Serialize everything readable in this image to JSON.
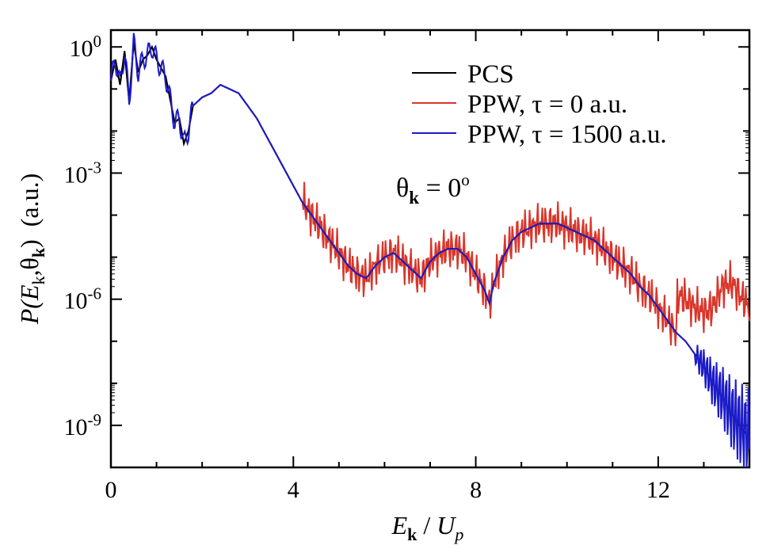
{
  "chart_data": {
    "type": "line",
    "title": "",
    "xlabel": "E_k / U_p",
    "ylabel": "P(E_k, θ_k) (a.u.)",
    "xlabel_parts": {
      "main": "E",
      "sub": "k",
      "sep": " / ",
      "u": "U",
      "usub": "p"
    },
    "ylabel_parts": {
      "p": "P(",
      "e": "E",
      "esub": "k",
      "comma": ",θ",
      "tsub": "k",
      "close": ")",
      "units": "(a.u.)"
    },
    "xlim": [
      0,
      14
    ],
    "ylim_log10": [
      -10,
      0.4
    ],
    "y_scale": "log",
    "x_ticks": [
      {
        "value": 0,
        "label": "0"
      },
      {
        "value": 4,
        "label": "4"
      },
      {
        "value": 8,
        "label": "8"
      },
      {
        "value": 12,
        "label": "12"
      }
    ],
    "y_ticks": [
      {
        "exp": 0,
        "base": "10",
        "sup": "0"
      },
      {
        "exp": -3,
        "base": "10",
        "sup": "-3"
      },
      {
        "exp": -6,
        "base": "10",
        "sup": "-6"
      },
      {
        "exp": -9,
        "base": "10",
        "sup": "-9"
      }
    ],
    "annotation": {
      "theta": "θ",
      "sub": "k",
      "eq": " = 0",
      "sup": "o"
    },
    "legend_position": "top-right",
    "series": [
      {
        "name": "PCS",
        "color": "#000000",
        "x": [
          0,
          0.1,
          0.2,
          0.3,
          0.4,
          0.5,
          0.6,
          0.7,
          0.8,
          0.9,
          1.0,
          1.2,
          1.4,
          1.5,
          1.6,
          1.7,
          1.8,
          2.0,
          2.2,
          2.4,
          2.6,
          2.8,
          3.0,
          3.2,
          3.4,
          3.6,
          3.8,
          4.0,
          4.2,
          4.4,
          4.6,
          4.8,
          5.0,
          5.2,
          5.4,
          5.6,
          5.8,
          6.0,
          6.2,
          6.4,
          6.6,
          6.8,
          7.0,
          7.2,
          7.4,
          7.6,
          7.8,
          8.0,
          8.2,
          8.3,
          8.4,
          8.6,
          8.8,
          9.0,
          9.2,
          9.4,
          9.6,
          9.8,
          10.0,
          10.2,
          10.4,
          10.6,
          10.8,
          11.0,
          11.2,
          11.4,
          11.6,
          11.8,
          12.0,
          12.2,
          12.4,
          12.6,
          12.8,
          13.0,
          13.2,
          13.4,
          13.6,
          13.8,
          14.0
        ],
        "log10_y": [
          -0.8,
          -0.3,
          -0.9,
          -0.1,
          -1.3,
          0.1,
          -0.6,
          -0.3,
          -0.2,
          0.0,
          -0.3,
          -0.7,
          -1.8,
          -1.7,
          -2.3,
          -2.0,
          -1.4,
          -1.2,
          -1.1,
          -0.9,
          -1.0,
          -1.1,
          -1.4,
          -1.7,
          -2.1,
          -2.5,
          -2.9,
          -3.3,
          -3.7,
          -4.0,
          -4.3,
          -4.6,
          -4.9,
          -5.2,
          -5.4,
          -5.5,
          -5.2,
          -5.0,
          -4.9,
          -5.1,
          -5.3,
          -5.5,
          -5.1,
          -4.9,
          -4.8,
          -4.8,
          -5.0,
          -5.4,
          -5.8,
          -6.1,
          -5.6,
          -5.0,
          -4.6,
          -4.4,
          -4.3,
          -4.2,
          -4.2,
          -4.2,
          -4.3,
          -4.4,
          -4.5,
          -4.6,
          -4.8,
          -5.0,
          -5.2,
          -5.4,
          -5.7,
          -5.9,
          -6.2,
          -6.5,
          -6.8,
          -7.0,
          -7.3,
          -7.6,
          -8.0,
          -8.3,
          -8.7,
          -9.0,
          -9.3
        ]
      },
      {
        "name": "PPW, τ = 0 a.u.",
        "color": "#d9362b",
        "noise_from": 4.2,
        "noise_amp": 0.55,
        "tail_from": 12.4,
        "tail_x": [
          12.4,
          12.6,
          12.8,
          13.0,
          13.2,
          13.4,
          13.6,
          13.8,
          14.0
        ],
        "tail_log10_y": [
          -5.9,
          -6.0,
          -6.2,
          -6.3,
          -6.2,
          -5.7,
          -5.6,
          -5.9,
          -6.2
        ]
      },
      {
        "name": "PPW, τ = 1500 a.u.",
        "color": "#1c1cc8",
        "noise_from": 12.8,
        "noise_amp": 0.9
      }
    ]
  }
}
